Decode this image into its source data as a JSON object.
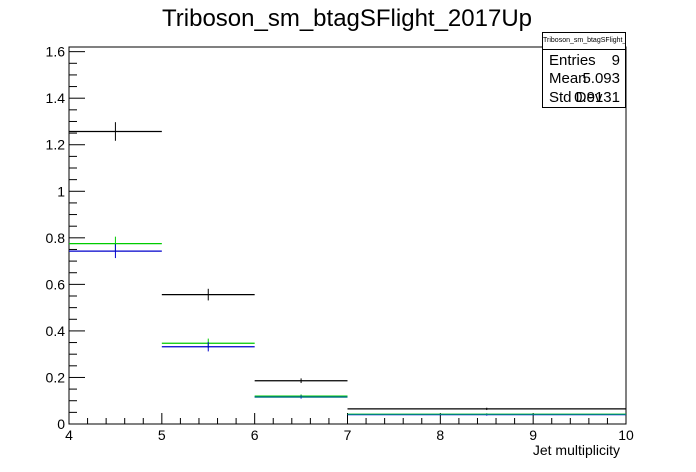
{
  "chart_data": {
    "type": "histogram",
    "title": "Triboson_sm_btagSFlight_2017Up",
    "xlabel": "Jet multiplicity",
    "ylabel": "",
    "xlim": [
      4,
      10
    ],
    "ylim": [
      0,
      1.62
    ],
    "x_ticks": [
      "4",
      "5",
      "6",
      "7",
      "8",
      "9",
      "10"
    ],
    "y_ticks": [
      "0",
      "0.2",
      "0.4",
      "0.6",
      "0.8",
      "1",
      "1.2",
      "1.4",
      "1.6"
    ],
    "bins": [
      [
        4,
        5
      ],
      [
        5,
        6
      ],
      [
        6,
        7
      ],
      [
        7,
        10
      ]
    ],
    "series": [
      {
        "color": "#000000",
        "values": [
          1.257,
          0.556,
          0.186,
          0.065
        ],
        "errors": [
          0.04,
          0.025,
          0.01,
          0.005
        ]
      },
      {
        "color": "#00cc00",
        "values": [
          0.775,
          0.347,
          0.12,
          0.042
        ],
        "errors": [
          0.03,
          0.02,
          0.007,
          0.004
        ]
      },
      {
        "color": "#0000cc",
        "values": [
          0.743,
          0.332,
          0.116,
          0.04
        ],
        "errors": [
          0.03,
          0.02,
          0.007,
          0.004
        ]
      },
      {
        "color": "#008080",
        "values": [
          0.0,
          0.0,
          0.116,
          0.041
        ],
        "errors": [
          0,
          0,
          0,
          0
        ]
      }
    ],
    "legend": "top-right",
    "grid": false
  },
  "stats": {
    "title": "Triboson_sm_btagSFlight_2017Up",
    "rows": [
      {
        "key": "Entries",
        "value": "9"
      },
      {
        "key": "Mean",
        "value": "5.093"
      },
      {
        "key": "Std Dev",
        "value": "0.9131"
      }
    ]
  }
}
